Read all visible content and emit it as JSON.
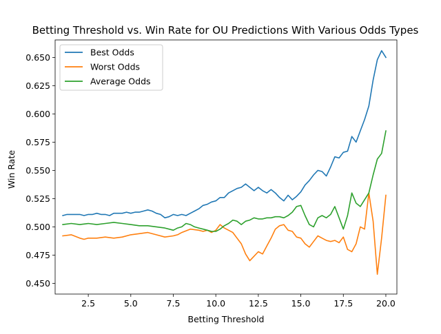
{
  "chart_data": {
    "type": "line",
    "title": "Betting Threshold vs. Win Rate for OU Predictions With Various Odds Types",
    "xlabel": "Betting Threshold",
    "ylabel": "Win Rate",
    "xlim": [
      0.55,
      20.65
    ],
    "ylim": [
      0.4405,
      0.6655
    ],
    "xticks": [
      2.5,
      5.0,
      7.5,
      10.0,
      12.5,
      15.0,
      17.5,
      20.0
    ],
    "xtick_labels": [
      "2.5",
      "5.0",
      "7.5",
      "10.0",
      "12.5",
      "15.0",
      "17.5",
      "20.0"
    ],
    "yticks": [
      0.45,
      0.475,
      0.5,
      0.525,
      0.55,
      0.575,
      0.6,
      0.625,
      0.65
    ],
    "ytick_labels": [
      "0.450",
      "0.475",
      "0.500",
      "0.525",
      "0.550",
      "0.575",
      "0.600",
      "0.625",
      "0.650"
    ],
    "grid": false,
    "legend_position": "upper-left",
    "series": [
      {
        "name": "Best Odds",
        "color": "#1f77b4",
        "points": [
          [
            1.0,
            0.51
          ],
          [
            1.25,
            0.511
          ],
          [
            1.5,
            0.511
          ],
          [
            2.0,
            0.511
          ],
          [
            2.25,
            0.51
          ],
          [
            2.5,
            0.511
          ],
          [
            2.75,
            0.511
          ],
          [
            3.0,
            0.512
          ],
          [
            3.25,
            0.511
          ],
          [
            3.5,
            0.511
          ],
          [
            3.75,
            0.51
          ],
          [
            4.0,
            0.512
          ],
          [
            4.25,
            0.512
          ],
          [
            4.5,
            0.512
          ],
          [
            4.75,
            0.513
          ],
          [
            5.0,
            0.512
          ],
          [
            5.25,
            0.513
          ],
          [
            5.5,
            0.513
          ],
          [
            5.75,
            0.514
          ],
          [
            6.0,
            0.515
          ],
          [
            6.25,
            0.514
          ],
          [
            6.5,
            0.512
          ],
          [
            6.75,
            0.511
          ],
          [
            7.0,
            0.508
          ],
          [
            7.25,
            0.509
          ],
          [
            7.5,
            0.511
          ],
          [
            7.75,
            0.51
          ],
          [
            8.0,
            0.511
          ],
          [
            8.25,
            0.51
          ],
          [
            8.5,
            0.512
          ],
          [
            8.75,
            0.514
          ],
          [
            9.0,
            0.516
          ],
          [
            9.25,
            0.519
          ],
          [
            9.5,
            0.52
          ],
          [
            9.75,
            0.522
          ],
          [
            10.0,
            0.523
          ],
          [
            10.25,
            0.526
          ],
          [
            10.5,
            0.526
          ],
          [
            10.75,
            0.53
          ],
          [
            11.0,
            0.532
          ],
          [
            11.25,
            0.534
          ],
          [
            11.5,
            0.535
          ],
          [
            11.75,
            0.538
          ],
          [
            12.0,
            0.535
          ],
          [
            12.25,
            0.532
          ],
          [
            12.5,
            0.535
          ],
          [
            12.75,
            0.532
          ],
          [
            13.0,
            0.53
          ],
          [
            13.25,
            0.533
          ],
          [
            13.5,
            0.53
          ],
          [
            13.75,
            0.526
          ],
          [
            14.0,
            0.523
          ],
          [
            14.25,
            0.528
          ],
          [
            14.5,
            0.524
          ],
          [
            14.75,
            0.527
          ],
          [
            15.0,
            0.531
          ],
          [
            15.25,
            0.537
          ],
          [
            15.5,
            0.541
          ],
          [
            15.75,
            0.546
          ],
          [
            16.0,
            0.55
          ],
          [
            16.25,
            0.549
          ],
          [
            16.5,
            0.545
          ],
          [
            16.75,
            0.553
          ],
          [
            17.0,
            0.562
          ],
          [
            17.25,
            0.561
          ],
          [
            17.5,
            0.566
          ],
          [
            17.75,
            0.567
          ],
          [
            18.0,
            0.58
          ],
          [
            18.25,
            0.575
          ],
          [
            18.5,
            0.585
          ],
          [
            18.75,
            0.595
          ],
          [
            19.0,
            0.607
          ],
          [
            19.25,
            0.63
          ],
          [
            19.5,
            0.648
          ],
          [
            19.75,
            0.656
          ],
          [
            20.0,
            0.65
          ]
        ]
      },
      {
        "name": "Worst Odds",
        "color": "#ff7f0e",
        "points": [
          [
            1.0,
            0.492
          ],
          [
            1.5,
            0.493
          ],
          [
            2.0,
            0.49
          ],
          [
            2.25,
            0.489
          ],
          [
            2.5,
            0.49
          ],
          [
            3.0,
            0.49
          ],
          [
            3.5,
            0.491
          ],
          [
            4.0,
            0.49
          ],
          [
            4.5,
            0.491
          ],
          [
            5.0,
            0.493
          ],
          [
            5.5,
            0.494
          ],
          [
            6.0,
            0.495
          ],
          [
            6.5,
            0.493
          ],
          [
            7.0,
            0.491
          ],
          [
            7.5,
            0.492
          ],
          [
            7.75,
            0.493
          ],
          [
            8.0,
            0.495
          ],
          [
            8.5,
            0.498
          ],
          [
            9.0,
            0.497
          ],
          [
            9.25,
            0.496
          ],
          [
            9.5,
            0.497
          ],
          [
            9.75,
            0.495
          ],
          [
            10.0,
            0.497
          ],
          [
            10.25,
            0.502
          ],
          [
            10.5,
            0.499
          ],
          [
            10.75,
            0.497
          ],
          [
            11.0,
            0.495
          ],
          [
            11.25,
            0.49
          ],
          [
            11.5,
            0.485
          ],
          [
            11.75,
            0.476
          ],
          [
            12.0,
            0.47
          ],
          [
            12.25,
            0.474
          ],
          [
            12.5,
            0.478
          ],
          [
            12.75,
            0.476
          ],
          [
            13.0,
            0.483
          ],
          [
            13.25,
            0.49
          ],
          [
            13.5,
            0.498
          ],
          [
            13.75,
            0.501
          ],
          [
            14.0,
            0.502
          ],
          [
            14.25,
            0.497
          ],
          [
            14.5,
            0.496
          ],
          [
            14.75,
            0.491
          ],
          [
            15.0,
            0.49
          ],
          [
            15.25,
            0.485
          ],
          [
            15.5,
            0.482
          ],
          [
            15.75,
            0.487
          ],
          [
            16.0,
            0.492
          ],
          [
            16.25,
            0.49
          ],
          [
            16.5,
            0.488
          ],
          [
            16.75,
            0.487
          ],
          [
            17.0,
            0.488
          ],
          [
            17.25,
            0.486
          ],
          [
            17.5,
            0.491
          ],
          [
            17.75,
            0.48
          ],
          [
            18.0,
            0.478
          ],
          [
            18.25,
            0.485
          ],
          [
            18.5,
            0.5
          ],
          [
            18.75,
            0.498
          ],
          [
            19.0,
            0.53
          ],
          [
            19.25,
            0.505
          ],
          [
            19.5,
            0.458
          ],
          [
            19.75,
            0.49
          ],
          [
            20.0,
            0.528
          ]
        ]
      },
      {
        "name": "Average Odds",
        "color": "#2ca02c",
        "points": [
          [
            1.0,
            0.502
          ],
          [
            1.5,
            0.503
          ],
          [
            2.0,
            0.502
          ],
          [
            2.5,
            0.503
          ],
          [
            3.0,
            0.502
          ],
          [
            3.5,
            0.503
          ],
          [
            4.0,
            0.504
          ],
          [
            4.5,
            0.503
          ],
          [
            5.0,
            0.502
          ],
          [
            5.5,
            0.501
          ],
          [
            6.0,
            0.501
          ],
          [
            6.5,
            0.5
          ],
          [
            7.0,
            0.499
          ],
          [
            7.25,
            0.498
          ],
          [
            7.5,
            0.497
          ],
          [
            7.75,
            0.499
          ],
          [
            8.0,
            0.5
          ],
          [
            8.25,
            0.503
          ],
          [
            8.5,
            0.502
          ],
          [
            8.75,
            0.5
          ],
          [
            9.0,
            0.499
          ],
          [
            9.25,
            0.498
          ],
          [
            9.5,
            0.497
          ],
          [
            9.75,
            0.496
          ],
          [
            10.0,
            0.496
          ],
          [
            10.25,
            0.498
          ],
          [
            10.5,
            0.501
          ],
          [
            10.75,
            0.503
          ],
          [
            11.0,
            0.506
          ],
          [
            11.25,
            0.505
          ],
          [
            11.5,
            0.502
          ],
          [
            11.75,
            0.505
          ],
          [
            12.0,
            0.506
          ],
          [
            12.25,
            0.508
          ],
          [
            12.5,
            0.507
          ],
          [
            12.75,
            0.507
          ],
          [
            13.0,
            0.508
          ],
          [
            13.25,
            0.508
          ],
          [
            13.5,
            0.509
          ],
          [
            13.75,
            0.509
          ],
          [
            14.0,
            0.508
          ],
          [
            14.25,
            0.51
          ],
          [
            14.5,
            0.513
          ],
          [
            14.75,
            0.518
          ],
          [
            15.0,
            0.519
          ],
          [
            15.25,
            0.51
          ],
          [
            15.5,
            0.502
          ],
          [
            15.75,
            0.5
          ],
          [
            16.0,
            0.508
          ],
          [
            16.25,
            0.51
          ],
          [
            16.5,
            0.508
          ],
          [
            16.75,
            0.511
          ],
          [
            17.0,
            0.518
          ],
          [
            17.25,
            0.508
          ],
          [
            17.5,
            0.498
          ],
          [
            17.75,
            0.51
          ],
          [
            18.0,
            0.53
          ],
          [
            18.25,
            0.521
          ],
          [
            18.5,
            0.518
          ],
          [
            18.75,
            0.524
          ],
          [
            19.0,
            0.53
          ],
          [
            19.25,
            0.546
          ],
          [
            19.5,
            0.56
          ],
          [
            19.75,
            0.565
          ],
          [
            20.0,
            0.585
          ]
        ]
      }
    ]
  }
}
